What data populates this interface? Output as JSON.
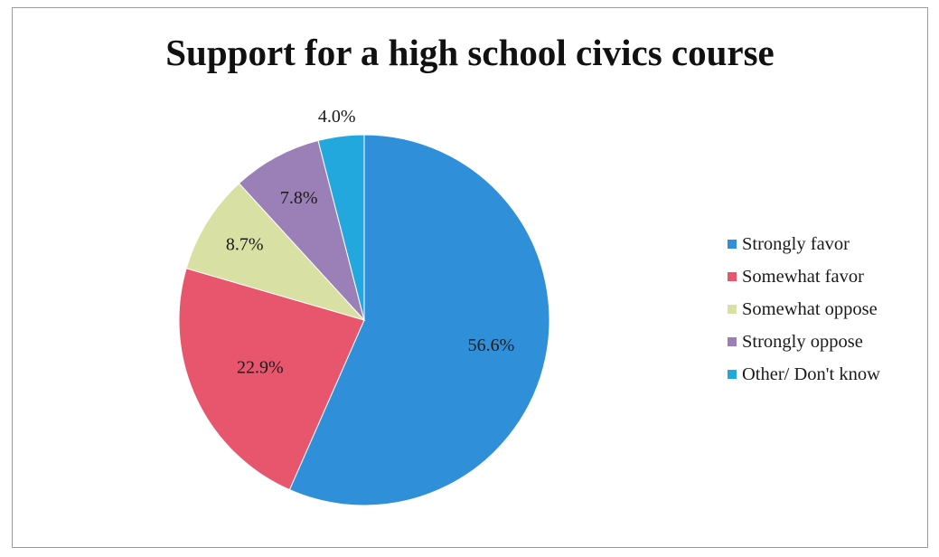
{
  "chart_data": {
    "type": "pie",
    "title": "Support for a high school civics course",
    "slices": [
      {
        "label": "Strongly favor",
        "value": 56.6,
        "display": "56.6%",
        "color": "#2f8fd8"
      },
      {
        "label": "Somewhat favor",
        "value": 22.9,
        "display": "22.9%",
        "color": "#e8566d"
      },
      {
        "label": "Somewhat oppose",
        "value": 8.7,
        "display": "8.7%",
        "color": "#d8e0a3"
      },
      {
        "label": "Strongly oppose",
        "value": 7.8,
        "display": "7.8%",
        "color": "#9b80b8"
      },
      {
        "label": "Other/ Don't know",
        "value": 4.0,
        "display": "4.0%",
        "color": "#23a8de"
      }
    ],
    "legend_position": "right"
  }
}
